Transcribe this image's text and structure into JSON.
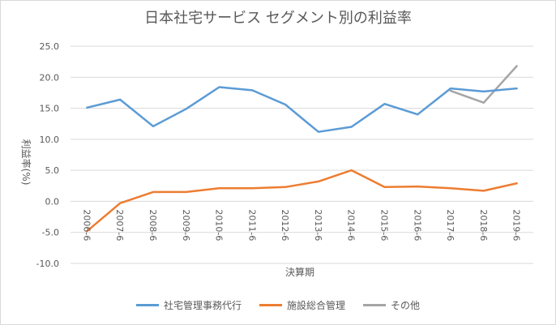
{
  "chart_data": {
    "type": "line",
    "title": "日本社宅サービス セグメント別の利益率",
    "xlabel": "決算期",
    "ylabel": "利益率(%)",
    "ylim": [
      -10,
      25
    ],
    "yticks": [
      "25.0",
      "20.0",
      "15.0",
      "10.0",
      "5.0",
      "0.0",
      "-5.0",
      "-10.0"
    ],
    "ytick_values": [
      25,
      20,
      15,
      10,
      5,
      0,
      -5,
      -10
    ],
    "categories": [
      "2006-6",
      "2007-6",
      "2008-6",
      "2009-6",
      "2010-6",
      "2011-6",
      "2012-6",
      "2013-6",
      "2014-6",
      "2015-6",
      "2016-6",
      "2017-6",
      "2018-6",
      "2019-6"
    ],
    "grid": true,
    "legend_position": "bottom",
    "series": [
      {
        "name": "社宅管理事務代行",
        "color": "#5b9bd5",
        "values": [
          15.1,
          16.4,
          12.1,
          14.9,
          18.4,
          17.9,
          15.6,
          11.2,
          12.0,
          15.7,
          14.0,
          18.2,
          17.7,
          18.2
        ]
      },
      {
        "name": "施設総合管理",
        "color": "#ed7d31",
        "values": [
          -4.8,
          -0.3,
          1.5,
          1.5,
          2.1,
          2.1,
          2.3,
          3.2,
          5.0,
          2.3,
          2.4,
          2.1,
          1.7,
          2.9
        ]
      },
      {
        "name": "その他",
        "color": "#a5a5a5",
        "values": [
          null,
          null,
          null,
          null,
          null,
          null,
          null,
          null,
          null,
          null,
          null,
          17.8,
          15.9,
          21.8
        ]
      }
    ]
  }
}
